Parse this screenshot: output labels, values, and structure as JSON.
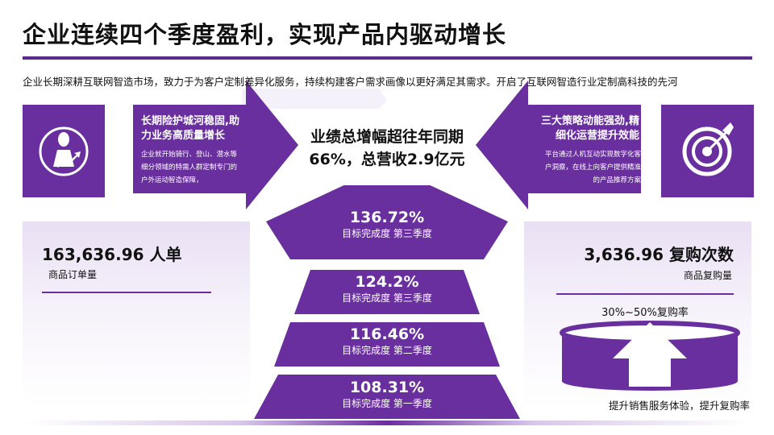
{
  "title": "企业连续四个季度盈利，实现产品内驱动增长",
  "intro": "企业长期深耕互联网智造市场，致力于为客户定制差异化服务，持续构建客户需求画像以更好满足其需求。开启了互联网智造行业定制高科技的先河",
  "center_headline": {
    "line1": "业绩总增幅超往年同期",
    "line2": "66%，总营收2.9亿元"
  },
  "left_card": {
    "icon": "businessman-growth-icon",
    "heading_line1": "长期险护城河稳固,助",
    "heading_line2": "力业务高质量增长",
    "body_line1": "企业就开始骑行、登山、潜水等",
    "body_line2": "细分领域的特需人群定制专门的",
    "body_line3": "户外运动智造保障，"
  },
  "right_card": {
    "icon": "target-arrow-icon",
    "heading_line1": "三大策略动能强劲,精",
    "heading_line2": "细化运营提升效能",
    "body_line1": "平台通过人机互动实现数字化客",
    "body_line2": "户洞察，在线上向客户提供精准",
    "body_line3": "的产品推荐方案"
  },
  "left_stat": {
    "value": "163,636.96 人单",
    "label": "商品订单量"
  },
  "right_stat": {
    "value": "3,636.96 复购次数",
    "label": "商品复购量",
    "rate": "30%~50%复购率",
    "caption": "提升销售服务体验，提升复购率",
    "icon": "up-arrow-icon"
  },
  "pyramid": [
    {
      "value": "136.72%",
      "caption": "目标完成度 第三季度"
    },
    {
      "value": "124.2%",
      "caption": "目标完成度 第三季度"
    },
    {
      "value": "116.46%",
      "caption": "目标完成度 第二季度"
    },
    {
      "value": "108.31%",
      "caption": "目标完成度 第一季度"
    }
  ],
  "colors": {
    "primary": "#6a2f9f",
    "dark": "#5a2a8c",
    "light": "#efe8f6"
  }
}
